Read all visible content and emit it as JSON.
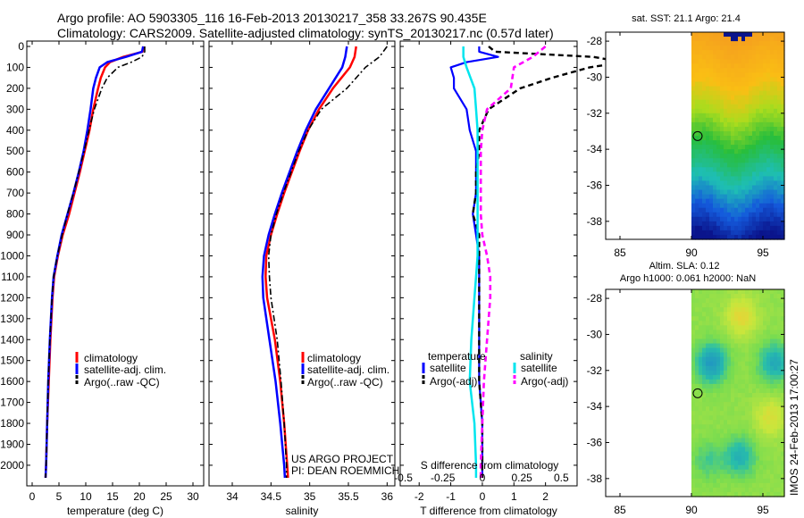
{
  "header": {
    "line1": "Argo profile: AO 5903305_116 16-Feb-2013 20130217_358 33.267S 90.435E",
    "line2": "Climatology: CARS2009. Satellite-adjusted climatology: synTS_20130217.nc (0.57d later)"
  },
  "depth_ticks": [
    "0",
    "100",
    "200",
    "300",
    "400",
    "500",
    "600",
    "700",
    "800",
    "900",
    "1000",
    "1100",
    "1200",
    "1300",
    "1400",
    "1500",
    "1600",
    "1700",
    "1800",
    "1900",
    "2000"
  ],
  "colors": {
    "climatology": "#ff0000",
    "satellite": "#0000ff",
    "argo": "#000000",
    "sat_salinity": "#00e5ee",
    "argo_salinity_adj": "#ff00ff"
  },
  "chart_data": [
    {
      "type": "line",
      "name": "temperature",
      "xlabel": "temperature (deg C)",
      "xlim": [
        -1,
        32
      ],
      "ylim": [
        0,
        2060
      ],
      "xticks": [
        0,
        5,
        10,
        15,
        20,
        25,
        30
      ],
      "xtick_labels": [
        "0",
        "5",
        "10",
        "15",
        "20",
        "25",
        "30"
      ],
      "legend": [
        "climatology",
        "satellite-adj. clim.",
        "Argo(..raw -QC)"
      ],
      "series": [
        {
          "name": "climatology",
          "depth": [
            0,
            25,
            50,
            75,
            100,
            150,
            200,
            300,
            400,
            500,
            600,
            700,
            800,
            900,
            1000,
            1100,
            1200,
            1400,
            1600,
            1800,
            2000,
            2060
          ],
          "values": [
            20.8,
            20.6,
            17,
            14.5,
            13.6,
            12.8,
            12.3,
            11.4,
            10.7,
            9.8,
            8.9,
            7.9,
            6.9,
            5.7,
            4.8,
            4.1,
            3.8,
            3.4,
            3.1,
            2.8,
            2.6,
            2.5
          ]
        },
        {
          "name": "satellite-adj. clim.",
          "depth": [
            0,
            25,
            50,
            75,
            100,
            150,
            200,
            300,
            400,
            500,
            600,
            700,
            800,
            900,
            1000,
            1100,
            1200,
            1400,
            1600,
            1800,
            2000,
            2060
          ],
          "values": [
            20.7,
            20.5,
            17.5,
            14,
            12.6,
            11.9,
            11.4,
            10.9,
            10.3,
            9.6,
            8.7,
            7.7,
            6.6,
            5.5,
            4.7,
            4.0,
            3.7,
            3.3,
            3.0,
            2.8,
            2.6,
            2.5
          ]
        },
        {
          "name": "Argo(..raw -QC)",
          "depth": [
            0,
            25,
            50,
            75,
            100,
            150,
            200,
            300,
            400,
            500,
            600,
            700,
            800,
            900,
            1000,
            1100,
            1200,
            1400,
            1600,
            1800,
            2000,
            2060
          ],
          "values": [
            21,
            21,
            20.5,
            18.5,
            16,
            14,
            13,
            11.6,
            10.6,
            9.7,
            8.7,
            7.7,
            6.6,
            5.6,
            4.7,
            4.0,
            3.7,
            3.3,
            3.0,
            2.8,
            2.6,
            2.5
          ]
        }
      ]
    },
    {
      "type": "line",
      "name": "salinity",
      "xlabel": "salinity",
      "xlim": [
        33.7,
        36.1
      ],
      "ylim": [
        0,
        2060
      ],
      "xticks": [
        34,
        34.5,
        35,
        35.5,
        36
      ],
      "xtick_labels": [
        "34",
        "34.5",
        "35",
        "35.5",
        "36"
      ],
      "legend": [
        "climatology",
        "satellite-adj. clim.",
        "Argo(..raw -QC)"
      ],
      "annotation": [
        "US ARGO PROJECT",
        "PI: DEAN ROEMMICH"
      ],
      "series": [
        {
          "name": "climatology",
          "depth": [
            0,
            50,
            100,
            200,
            300,
            400,
            500,
            600,
            700,
            800,
            900,
            1000,
            1100,
            1200,
            1400,
            1600,
            1800,
            2000,
            2060
          ],
          "values": [
            35.6,
            35.58,
            35.52,
            35.3,
            35.12,
            34.98,
            34.87,
            34.77,
            34.67,
            34.58,
            34.5,
            34.44,
            34.43,
            34.45,
            34.55,
            34.62,
            34.67,
            34.71,
            34.72
          ]
        },
        {
          "name": "satellite-adj. clim.",
          "depth": [
            0,
            50,
            100,
            200,
            300,
            400,
            500,
            600,
            700,
            800,
            900,
            1000,
            1100,
            1200,
            1400,
            1600,
            1800,
            2000,
            2060
          ],
          "values": [
            35.48,
            35.46,
            35.42,
            35.25,
            35.08,
            34.95,
            34.84,
            34.74,
            34.64,
            34.55,
            34.47,
            34.41,
            34.39,
            34.4,
            34.48,
            34.56,
            34.62,
            34.67,
            34.68
          ]
        },
        {
          "name": "Argo(..raw -QC)",
          "depth": [
            0,
            50,
            100,
            200,
            300,
            400,
            500,
            600,
            700,
            800,
            900,
            1000,
            1100,
            1200,
            1400,
            1600,
            1800,
            2000,
            2060
          ],
          "values": [
            36.0,
            35.9,
            35.72,
            35.48,
            35.15,
            34.98,
            34.86,
            34.76,
            34.66,
            34.57,
            34.5,
            34.47,
            34.48,
            34.5,
            34.58,
            34.63,
            34.67,
            34.7,
            34.7
          ]
        }
      ]
    },
    {
      "type": "line",
      "name": "difference",
      "xlabel": "T difference from climatology",
      "xlabel_top": "S difference from climatology",
      "xlim": [
        -2.6,
        3.0
      ],
      "ylim": [
        0,
        2060
      ],
      "xticks": [
        -2,
        -1,
        0,
        1,
        2
      ],
      "xtick_labels": [
        "-2",
        "-1",
        "0",
        "1",
        "2"
      ],
      "xticks_top": [
        -0.5,
        -0.25,
        0,
        0.25,
        0.5
      ],
      "xtick_labels_top": [
        "-0.5",
        "-0.25",
        "0",
        "0.25",
        "0.5"
      ],
      "legend_groups": [
        {
          "title": "temperature",
          "items": [
            "satellite",
            "Argo(-adj)"
          ]
        },
        {
          "title": "salinity",
          "items": [
            "satellite",
            "Argo(-adj)"
          ]
        }
      ],
      "series": [
        {
          "name": "T satellite",
          "depth": [
            0,
            25,
            50,
            75,
            100,
            150,
            200,
            300,
            400,
            500,
            600,
            700,
            800,
            900,
            1000,
            1100,
            1200,
            1400,
            1600,
            1800,
            2000,
            2060
          ],
          "values": [
            -0.1,
            -0.1,
            0.5,
            -0.5,
            -1.0,
            -0.9,
            -0.9,
            -0.5,
            -0.4,
            -0.2,
            -0.2,
            -0.2,
            -0.3,
            -0.2,
            -0.1,
            -0.1,
            -0.1,
            -0.1,
            -0.1,
            0,
            0,
            0
          ]
        },
        {
          "name": "T Argo(-adj)",
          "depth": [
            0,
            25,
            50,
            75,
            100,
            150,
            200,
            300,
            400,
            500,
            600,
            700,
            800,
            900,
            1000,
            1100,
            1200,
            1400,
            1600,
            1800,
            2000,
            2060
          ],
          "values": [
            0.2,
            0.4,
            3.5,
            4.5,
            3.4,
            2.2,
            1.2,
            0.2,
            -0.1,
            -0.1,
            -0.2,
            -0.2,
            -0.3,
            -0.1,
            -0.1,
            -0.1,
            -0.1,
            -0.1,
            -0.1,
            0,
            0,
            0
          ]
        },
        {
          "name": "S satellite",
          "depth": [
            0,
            50,
            100,
            200,
            300,
            400,
            500,
            600,
            700,
            800,
            900,
            1000,
            1100,
            1200,
            1400,
            1600,
            1800,
            2000,
            2060
          ],
          "values": [
            -0.12,
            -0.12,
            -0.1,
            -0.05,
            -0.04,
            -0.03,
            -0.03,
            -0.03,
            -0.03,
            -0.03,
            -0.03,
            -0.03,
            -0.04,
            -0.05,
            -0.07,
            -0.08,
            -0.05,
            -0.04,
            -0.04
          ]
        },
        {
          "name": "S Argo(-adj)",
          "depth": [
            0,
            50,
            100,
            200,
            300,
            400,
            500,
            600,
            700,
            800,
            900,
            1000,
            1100,
            1200,
            1400,
            1600,
            1800,
            2000,
            2060
          ],
          "values": [
            0.4,
            0.32,
            0.2,
            0.18,
            0.03,
            0.0,
            -0.01,
            -0.01,
            -0.01,
            -0.01,
            0.0,
            0.03,
            0.05,
            0.05,
            0.03,
            0.01,
            0.0,
            -0.01,
            -0.01
          ]
        }
      ]
    },
    {
      "type": "heatmap",
      "name": "sst_map",
      "title": "sat. SST: 21.1  Argo: 21.4",
      "xlim": [
        84,
        96.5
      ],
      "ylim": [
        -39,
        -27.5
      ],
      "xticks": [
        85,
        90,
        95
      ],
      "yticks": [
        -28,
        -30,
        -32,
        -34,
        -36,
        -38
      ],
      "xtick_labels": [
        "85",
        "90",
        "95"
      ],
      "ytick_labels": [
        "-28",
        "-30",
        "-32",
        "-34",
        "-36",
        "-38"
      ],
      "data_xlim": [
        90,
        96.5
      ],
      "marker": {
        "lon": 90.435,
        "lat": -33.267
      }
    },
    {
      "type": "heatmap",
      "name": "sla_map",
      "title1": "Altim. SLA: 0.12",
      "title2": "Argo h1000: 0.061 h2000: NaN",
      "xlim": [
        84,
        96.5
      ],
      "ylim": [
        -39,
        -27.5
      ],
      "xticks": [
        85,
        90,
        95
      ],
      "yticks": [
        -28,
        -30,
        -32,
        -34,
        -36,
        -38
      ],
      "xtick_labels": [
        "85",
        "90",
        "95"
      ],
      "ytick_labels": [
        "-28",
        "-30",
        "-32",
        "-34",
        "-36",
        "-38"
      ],
      "data_xlim": [
        90,
        96.5
      ],
      "marker": {
        "lon": 90.435,
        "lat": -33.267
      }
    }
  ],
  "footer": {
    "stamp": "IMOS 24-Feb-2013 17:00:27"
  }
}
